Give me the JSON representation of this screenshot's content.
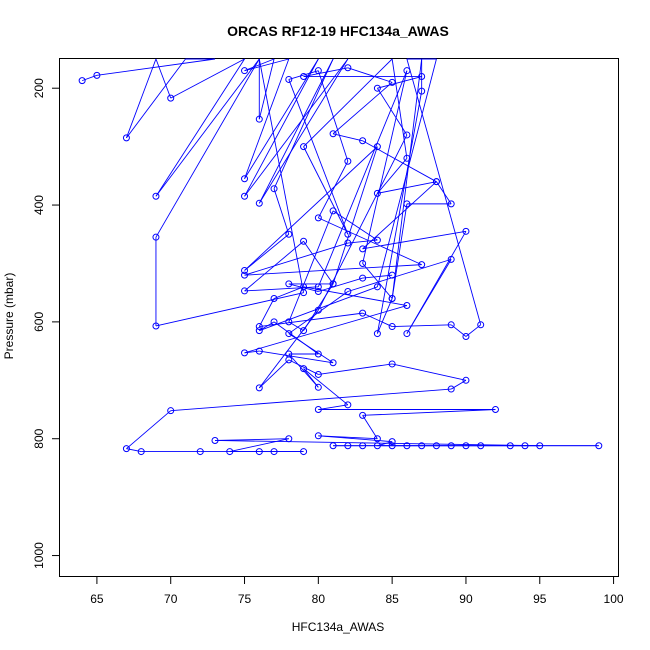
{
  "chart_data": {
    "type": "line",
    "title": "ORCAS RF12-19 HFC134a_AWAS",
    "xlabel": "HFC134a_AWAS",
    "ylabel": "Pressure (mbar)",
    "xlim": [
      62.5,
      100.3
    ],
    "ylim": [
      1035,
      150
    ],
    "y_reversed": true,
    "x_ticks": [
      65,
      70,
      75,
      80,
      85,
      90,
      95,
      100
    ],
    "y_ticks": [
      200,
      400,
      600,
      800,
      1000
    ],
    "grid": false,
    "legend": "none",
    "series": [
      {
        "color": "#0000ff",
        "points": [
          [
            64,
            187
          ],
          [
            65,
            178
          ],
          [
            73,
            150
          ],
          [
            71,
            150
          ],
          [
            67,
            285
          ],
          [
            69,
            150
          ],
          [
            70,
            217
          ],
          [
            75,
            150
          ],
          [
            69,
            385
          ],
          [
            76,
            150
          ],
          [
            69,
            455
          ],
          [
            69,
            607
          ],
          [
            79,
            550
          ],
          [
            76,
            150
          ],
          [
            76,
            253
          ],
          [
            77,
            150
          ],
          [
            75,
            170
          ],
          [
            78,
            150
          ],
          [
            75,
            355
          ],
          [
            80,
            150
          ],
          [
            75,
            385
          ],
          [
            82,
            150
          ],
          [
            76,
            397
          ],
          [
            81,
            150
          ],
          [
            77,
            372
          ],
          [
            78,
            450
          ],
          [
            75,
            512
          ],
          [
            84,
            300
          ],
          [
            81,
            535
          ],
          [
            79,
            462
          ],
          [
            75,
            547
          ],
          [
            80,
            540
          ],
          [
            86,
            170
          ],
          [
            83,
            500
          ],
          [
            85,
            560
          ],
          [
            87,
            150
          ],
          [
            87,
            205
          ],
          [
            84,
            620
          ],
          [
            85,
            560
          ],
          [
            86,
            398
          ],
          [
            89,
            398
          ],
          [
            88,
            360
          ],
          [
            83,
            475
          ],
          [
            90,
            445
          ],
          [
            86,
            620
          ],
          [
            89,
            493
          ],
          [
            82,
            548
          ],
          [
            78,
            620
          ],
          [
            81,
            670
          ],
          [
            76,
            650
          ],
          [
            75,
            653
          ],
          [
            86,
            572
          ],
          [
            79,
            540
          ],
          [
            77,
            560
          ],
          [
            76,
            608
          ],
          [
            83,
            585
          ],
          [
            85,
            608
          ],
          [
            89,
            605
          ],
          [
            90,
            625
          ],
          [
            91,
            605
          ],
          [
            86,
            150
          ],
          [
            88,
            150
          ],
          [
            84,
            540
          ],
          [
            76,
            615
          ],
          [
            77,
            600
          ],
          [
            80,
            655
          ],
          [
            78,
            655
          ],
          [
            80,
            712
          ],
          [
            79,
            680
          ],
          [
            82,
            742
          ],
          [
            80,
            750
          ],
          [
            92,
            750
          ],
          [
            83,
            760
          ],
          [
            84,
            800
          ],
          [
            80,
            795
          ],
          [
            85,
            805
          ],
          [
            84,
            812
          ],
          [
            99,
            812
          ],
          [
            81,
            812
          ],
          [
            82,
            812
          ],
          [
            83,
            812
          ],
          [
            85,
            812
          ],
          [
            86,
            812
          ],
          [
            87,
            812
          ],
          [
            88,
            812
          ],
          [
            89,
            812
          ],
          [
            90,
            812
          ],
          [
            91,
            812
          ],
          [
            93,
            812
          ],
          [
            94,
            812
          ],
          [
            95,
            812
          ],
          [
            73,
            803
          ],
          [
            78,
            800
          ],
          [
            74,
            822
          ],
          [
            76,
            822
          ],
          [
            77,
            822
          ],
          [
            79,
            822
          ],
          [
            72,
            822
          ],
          [
            68,
            822
          ],
          [
            67,
            817
          ],
          [
            70,
            752
          ],
          [
            89,
            715
          ],
          [
            90,
            700
          ],
          [
            85,
            672
          ],
          [
            80,
            690
          ],
          [
            78,
            665
          ],
          [
            76,
            713
          ],
          [
            80,
            580
          ],
          [
            86,
            280
          ],
          [
            84,
            200
          ],
          [
            87,
            180
          ],
          [
            79,
            180
          ],
          [
            82,
            165
          ],
          [
            85,
            190
          ],
          [
            81,
            278
          ],
          [
            83,
            290
          ],
          [
            88,
            360
          ],
          [
            84,
            380
          ],
          [
            86,
            320
          ],
          [
            85,
            150
          ],
          [
            79,
            300
          ],
          [
            82,
            450
          ],
          [
            78,
            185
          ],
          [
            80,
            170
          ],
          [
            82,
            325
          ],
          [
            80,
            422
          ],
          [
            87,
            502
          ],
          [
            75,
            520
          ],
          [
            82,
            465
          ],
          [
            84,
            460
          ],
          [
            81,
            410
          ],
          [
            78,
            600
          ],
          [
            79,
            615
          ],
          [
            81,
            535
          ],
          [
            78,
            535
          ],
          [
            80,
            548
          ],
          [
            83,
            525
          ],
          [
            85,
            520
          ]
        ]
      }
    ]
  }
}
